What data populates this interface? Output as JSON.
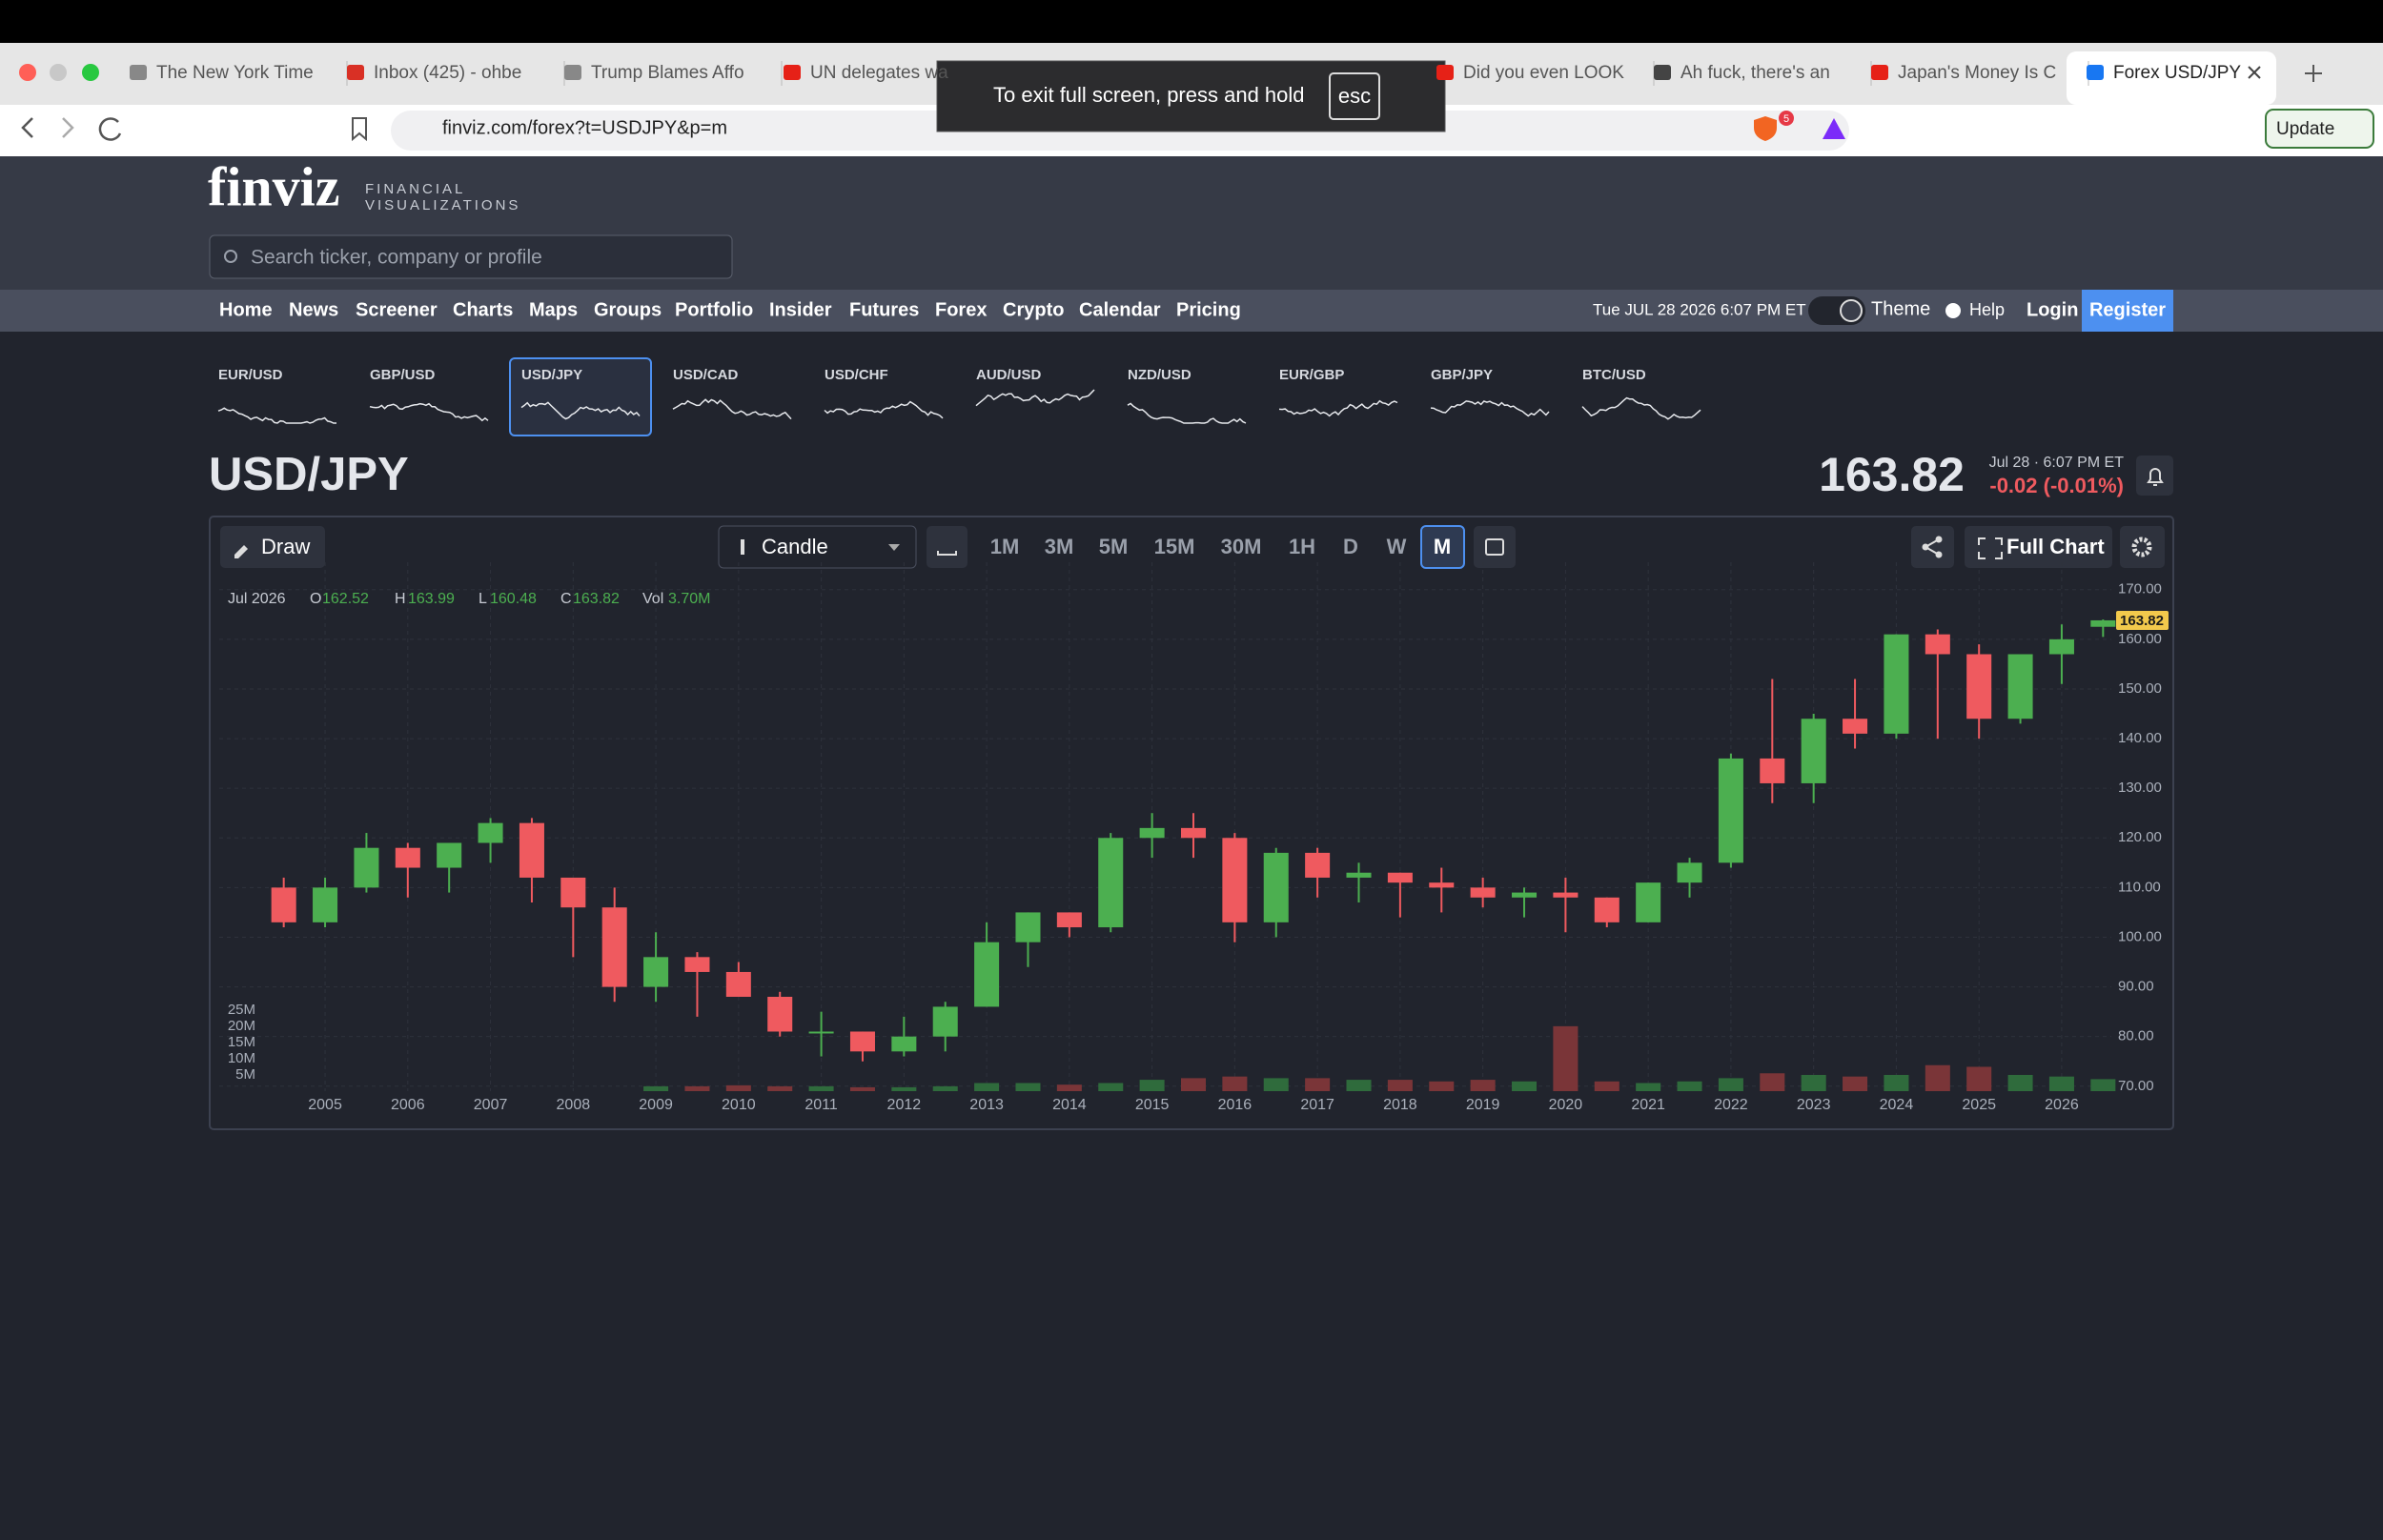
{
  "browser": {
    "tabs": [
      "The New York Time",
      "Inbox (425) - ohbe",
      "Trump Blames Affo",
      "UN delegates wa",
      "Did you even LOOK",
      "Ah fuck, there's an",
      "Japan's Money Is C",
      "Forex USD/JPY"
    ],
    "url": "finviz.com/forex?t=USDJPY&p=m",
    "badge": "5",
    "update": "Update",
    "fullscreen": {
      "message": "To exit full screen, press and hold",
      "key": "esc"
    }
  },
  "site": {
    "logo": "finviz",
    "logo_line1": "FINANCIAL",
    "logo_line2": "VISUALIZATIONS",
    "search": "Search ticker, company or profile",
    "nav": [
      "Home",
      "News",
      "Screener",
      "Charts",
      "Maps",
      "Groups",
      "Portfolio",
      "Insider",
      "Futures",
      "Forex",
      "Crypto",
      "Calendar",
      "Pricing"
    ],
    "datetime": "Tue JUL 28 2026 6:07 PM ET",
    "theme": "Theme",
    "help": "Help",
    "login": "Login",
    "register": "Register"
  },
  "pairs": {
    "items": [
      "EUR/USD",
      "GBP/USD",
      "USD/JPY",
      "USD/CAD",
      "USD/CHF",
      "AUD/USD",
      "NZD/USD",
      "EUR/GBP",
      "GBP/JPY",
      "BTC/USD"
    ],
    "selected": "USD/JPY"
  },
  "quote": {
    "symbol": "USD/JPY",
    "price": 163.82,
    "time": "Jul 28 · 6:07 PM ET",
    "change": "-0.02 (-0.01%)"
  },
  "toolbar": {
    "draw": "Draw",
    "chart_type": "Candle",
    "intervals": [
      "1M",
      "3M",
      "5M",
      "15M",
      "30M",
      "1H",
      "D",
      "W",
      "M"
    ],
    "active": "M",
    "full_chart": "Full Chart"
  },
  "chart_data": {
    "type": "candlestick",
    "x": [
      2004.5,
      2005,
      2005.5,
      2006,
      2006.5,
      2007,
      2007.5,
      2008,
      2008.5,
      2009,
      2009.5,
      2010,
      2010.5,
      2011,
      2011.5,
      2012,
      2012.5,
      2013,
      2013.5,
      2014,
      2014.5,
      2015,
      2015.5,
      2016,
      2016.5,
      2017,
      2017.5,
      2018,
      2018.5,
      2019,
      2019.5,
      2020,
      2020.5,
      2021,
      2021.5,
      2022,
      2022.5,
      2023,
      2023.5,
      2024,
      2024.5,
      2025,
      2025.5,
      2026,
      2026.5
    ],
    "open": [
      110,
      103,
      110,
      118,
      114,
      119,
      123,
      112,
      106,
      90,
      96,
      93,
      88,
      81,
      81,
      77,
      80,
      86,
      99,
      105,
      102,
      120,
      122,
      120,
      103,
      117,
      112,
      113,
      111,
      110,
      108,
      109,
      108,
      103,
      111,
      115,
      136,
      131,
      144,
      141,
      161,
      157,
      144,
      157,
      162.52
    ],
    "high": [
      112,
      112,
      121,
      119,
      119,
      124,
      124,
      112,
      110,
      101,
      97,
      95,
      89,
      85,
      81,
      84,
      87,
      103,
      105,
      105,
      121,
      125,
      125,
      121,
      118,
      118,
      115,
      113,
      114,
      112,
      110,
      112,
      108,
      111,
      116,
      137,
      152,
      145,
      152,
      161,
      162,
      159,
      157,
      163,
      163.99
    ],
    "low": [
      102,
      102,
      109,
      108,
      109,
      115,
      107,
      96,
      87,
      87,
      84,
      88,
      80,
      76,
      75,
      76,
      77,
      86,
      94,
      100,
      101,
      116,
      116,
      99,
      100,
      108,
      107,
      104,
      105,
      106,
      104,
      101,
      102,
      103,
      108,
      114,
      127,
      127,
      138,
      140,
      140,
      140,
      143,
      151,
      160.48
    ],
    "close": [
      103,
      110,
      118,
      114,
      119,
      123,
      112,
      106,
      90,
      96,
      93,
      88,
      81,
      81,
      77,
      80,
      86,
      99,
      105,
      102,
      120,
      122,
      120,
      103,
      117,
      112,
      113,
      111,
      110,
      108,
      109,
      108,
      103,
      111,
      115,
      136,
      131,
      144,
      141,
      161,
      157,
      144,
      157,
      160,
      163.82
    ],
    "volume": [
      null,
      null,
      null,
      null,
      null,
      null,
      null,
      null,
      null,
      1500000,
      1500000,
      1800000,
      1500000,
      1500000,
      1200000,
      1200000,
      1500000,
      2500000,
      2500000,
      2000000,
      2500000,
      3500000,
      4000000,
      4500000,
      4000000,
      4000000,
      3500000,
      3500000,
      3000000,
      3500000,
      3000000,
      20000000,
      3000000,
      2500000,
      3000000,
      4000000,
      5500000,
      5000000,
      4500000,
      5000000,
      8000000,
      7500000,
      5000000,
      4500000,
      3700000
    ],
    "xlim": [
      2003.72,
      2026.6
    ],
    "xticks": [
      2005,
      2006,
      2007,
      2008,
      2009,
      2010,
      2011,
      2012,
      2013,
      2014,
      2015,
      2016,
      2017,
      2018,
      2019,
      2020,
      2021,
      2022,
      2023,
      2024,
      2025,
      2026
    ],
    "ylim": [
      69,
      173.6
    ],
    "yticks": [
      {
        "value": 70,
        "label": "70.00"
      },
      {
        "value": 80,
        "label": "80.00"
      },
      {
        "value": 90,
        "label": "90.00"
      },
      {
        "value": 100,
        "label": "100.00"
      },
      {
        "value": 110,
        "label": "110.00"
      },
      {
        "value": 120,
        "label": "120.00"
      },
      {
        "value": 130,
        "label": "130.00"
      },
      {
        "value": 140,
        "label": "140.00"
      },
      {
        "value": 150,
        "label": "150.00"
      },
      {
        "value": 160,
        "label": "160.00"
      },
      {
        "value": 170,
        "label": "170.00"
      }
    ],
    "volume_ylim": [
      0,
      160000000
    ],
    "volume_ticks": [
      {
        "value": 5000000,
        "label": "5M"
      },
      {
        "value": 10000000,
        "label": "10M"
      },
      {
        "value": 15000000,
        "label": "15M"
      },
      {
        "value": 20000000,
        "label": "20M"
      },
      {
        "value": 25000000,
        "label": "25M"
      }
    ],
    "up_color": "#4caf50",
    "down_color": "#ef5a5f",
    "volume_up_color": "#2f6b3c",
    "volume_down_color": "#7a3538",
    "grid": true,
    "legend": {
      "period": "Jul 2026",
      "open_label": "O",
      "open": 162.52,
      "high_label": "H",
      "high": 163.99,
      "low_label": "L",
      "low": 160.48,
      "close_label": "C",
      "close": 163.82,
      "volume_label": "Vol",
      "volume": "3.70M"
    },
    "last_price": {
      "value": 163.82,
      "label": "163.82"
    }
  }
}
